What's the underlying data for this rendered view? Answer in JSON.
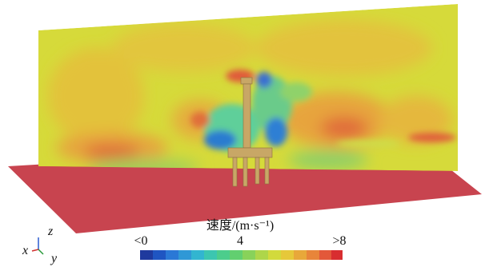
{
  "colorbar": {
    "title": "速度/(m·s⁻¹)",
    "ticks": [
      "<0",
      "4",
      ">8"
    ]
  },
  "axes": {
    "x": "x",
    "y": "y",
    "z": "z"
  }
}
